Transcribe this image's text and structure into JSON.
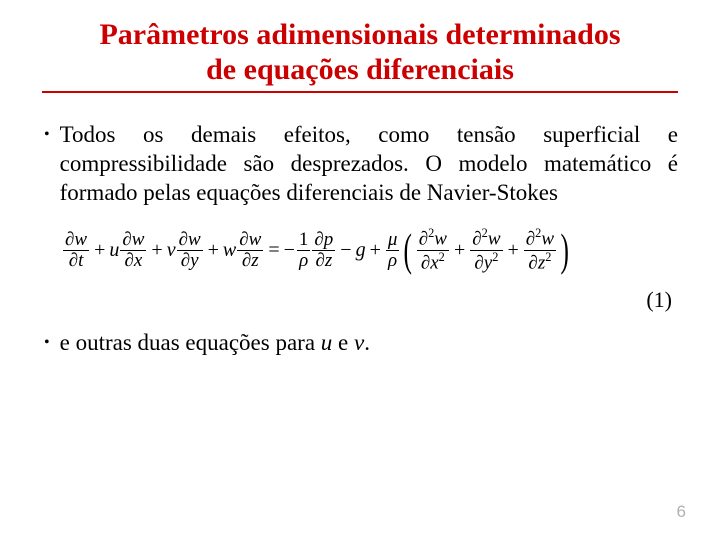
{
  "title_line1": "Parâmetros adimensionais determinados",
  "title_line2": "de equações diferenciais",
  "bullet1": "Todos os demais efeitos, como tensão superficial e compressibilidade são desprezados. O modelo matemático é formado pelas equações diferenciais de Navier-Stokes",
  "equation": {
    "t1_num": "∂w",
    "t1_den": "∂t",
    "t2_coef": "u",
    "t2_num": "∂w",
    "t2_den": "∂x",
    "t3_coef": "v",
    "t3_num": "∂w",
    "t3_den": "∂y",
    "t4_coef": "w",
    "t4_num": "∂w",
    "t4_den": "∂z",
    "r1_num": "1",
    "r1_den": "ρ",
    "r2_num": "∂p",
    "r2_den": "∂z",
    "g": "g",
    "mu_num": "μ",
    "mu_den": "ρ",
    "p1_num": "∂²w",
    "p1_den": "∂x²",
    "p2_num": "∂²w",
    "p2_den": "∂y²",
    "p3_num": "∂²w",
    "p3_den": "∂z²"
  },
  "eq_label": "(1)",
  "bullet2_prefix": "e outras duas equações para ",
  "bullet2_u": "u",
  "bullet2_mid": " e ",
  "bullet2_v": "v",
  "bullet2_suffix": ".",
  "page_number": "6"
}
